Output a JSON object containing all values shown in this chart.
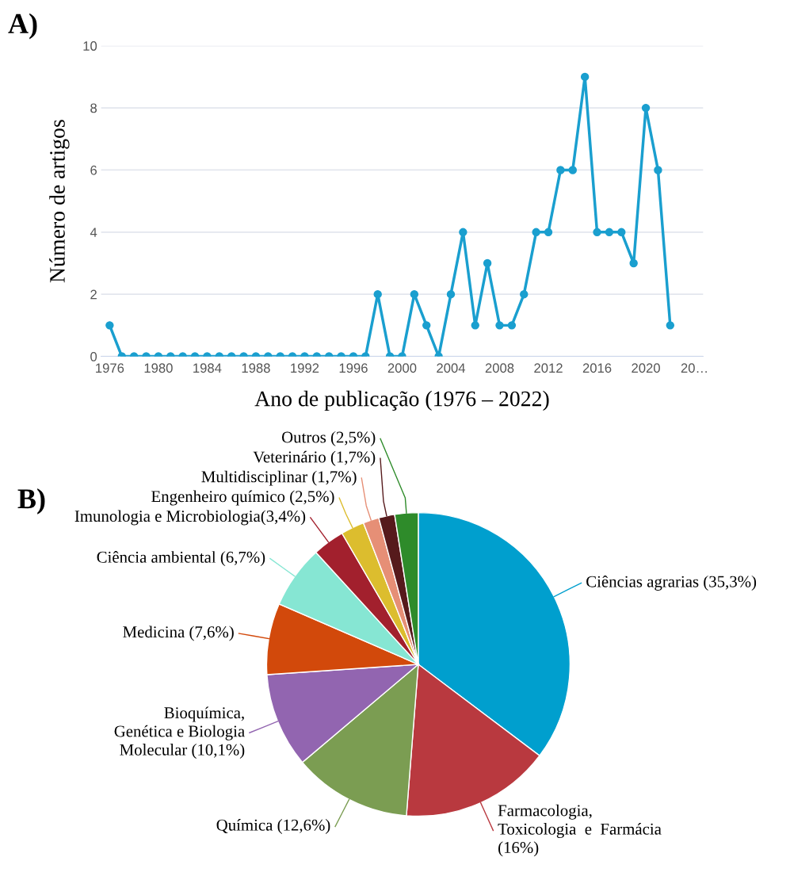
{
  "chart_data": [
    {
      "type": "line",
      "title": "A)",
      "xlabel": "Ano de publicação (1976 – 2022)",
      "ylabel": "Número de artigos",
      "x": [
        1976,
        1977,
        1978,
        1979,
        1980,
        1981,
        1982,
        1983,
        1984,
        1985,
        1986,
        1987,
        1988,
        1989,
        1990,
        1991,
        1992,
        1993,
        1994,
        1995,
        1996,
        1997,
        1998,
        1999,
        2000,
        2001,
        2002,
        2003,
        2004,
        2005,
        2006,
        2007,
        2008,
        2009,
        2010,
        2011,
        2012,
        2013,
        2014,
        2015,
        2016,
        2017,
        2018,
        2019,
        2020,
        2021,
        2022
      ],
      "series": [
        {
          "color": "#1a9fcf",
          "values": [
            1,
            0,
            0,
            0,
            0,
            0,
            0,
            0,
            0,
            0,
            0,
            0,
            0,
            0,
            0,
            0,
            0,
            0,
            0,
            0,
            0,
            0,
            2,
            0,
            0,
            2,
            1,
            0,
            2,
            4,
            1,
            3,
            1,
            1,
            2,
            4,
            4,
            6,
            6,
            9,
            4,
            4,
            4,
            3,
            8,
            6,
            1
          ]
        }
      ],
      "xlim": [
        1975.3,
        2024.7
      ],
      "xticks": [
        1976,
        1980,
        1984,
        1988,
        1992,
        1996,
        2000,
        2004,
        2008,
        2012,
        2016,
        2020,
        {
          "value": 2024,
          "label": "20…"
        }
      ],
      "ylim": [
        0,
        10
      ],
      "yticks": [
        0,
        2,
        4,
        6,
        8,
        10
      ],
      "grid": "y",
      "marker": "circle",
      "line_style": "solid"
    },
    {
      "type": "pie",
      "title": "B)",
      "categories": [
        "Ciências agrarias (35,3%)",
        "Farmacologia,\nToxicologia  e  Farmácia\n(16%)",
        "Química (12,6%)",
        "Bioquímica,\nGenética e Biologia\nMolecular (10,1%)",
        "Medicina (7,6%)",
        "Ciência ambiental (6,7%)",
        "Imunologia e Microbiologia(3,4%)",
        "Engenheiro químico (2,5%)",
        "Multidisciplinar (1,7%)",
        "Veterinário (1,7%)",
        "Outros (2,5%)"
      ],
      "values": [
        35.3,
        16,
        12.6,
        10.1,
        7.6,
        6.7,
        3.4,
        2.5,
        1.7,
        1.7,
        2.5
      ],
      "colors": [
        "#009fce",
        "#b9393f",
        "#7b9d52",
        "#9265b0",
        "#d2490b",
        "#86e6d3",
        "#a2202d",
        "#dcbd2e",
        "#e68f76",
        "#561a1c",
        "#2e8b2a"
      ]
    }
  ]
}
